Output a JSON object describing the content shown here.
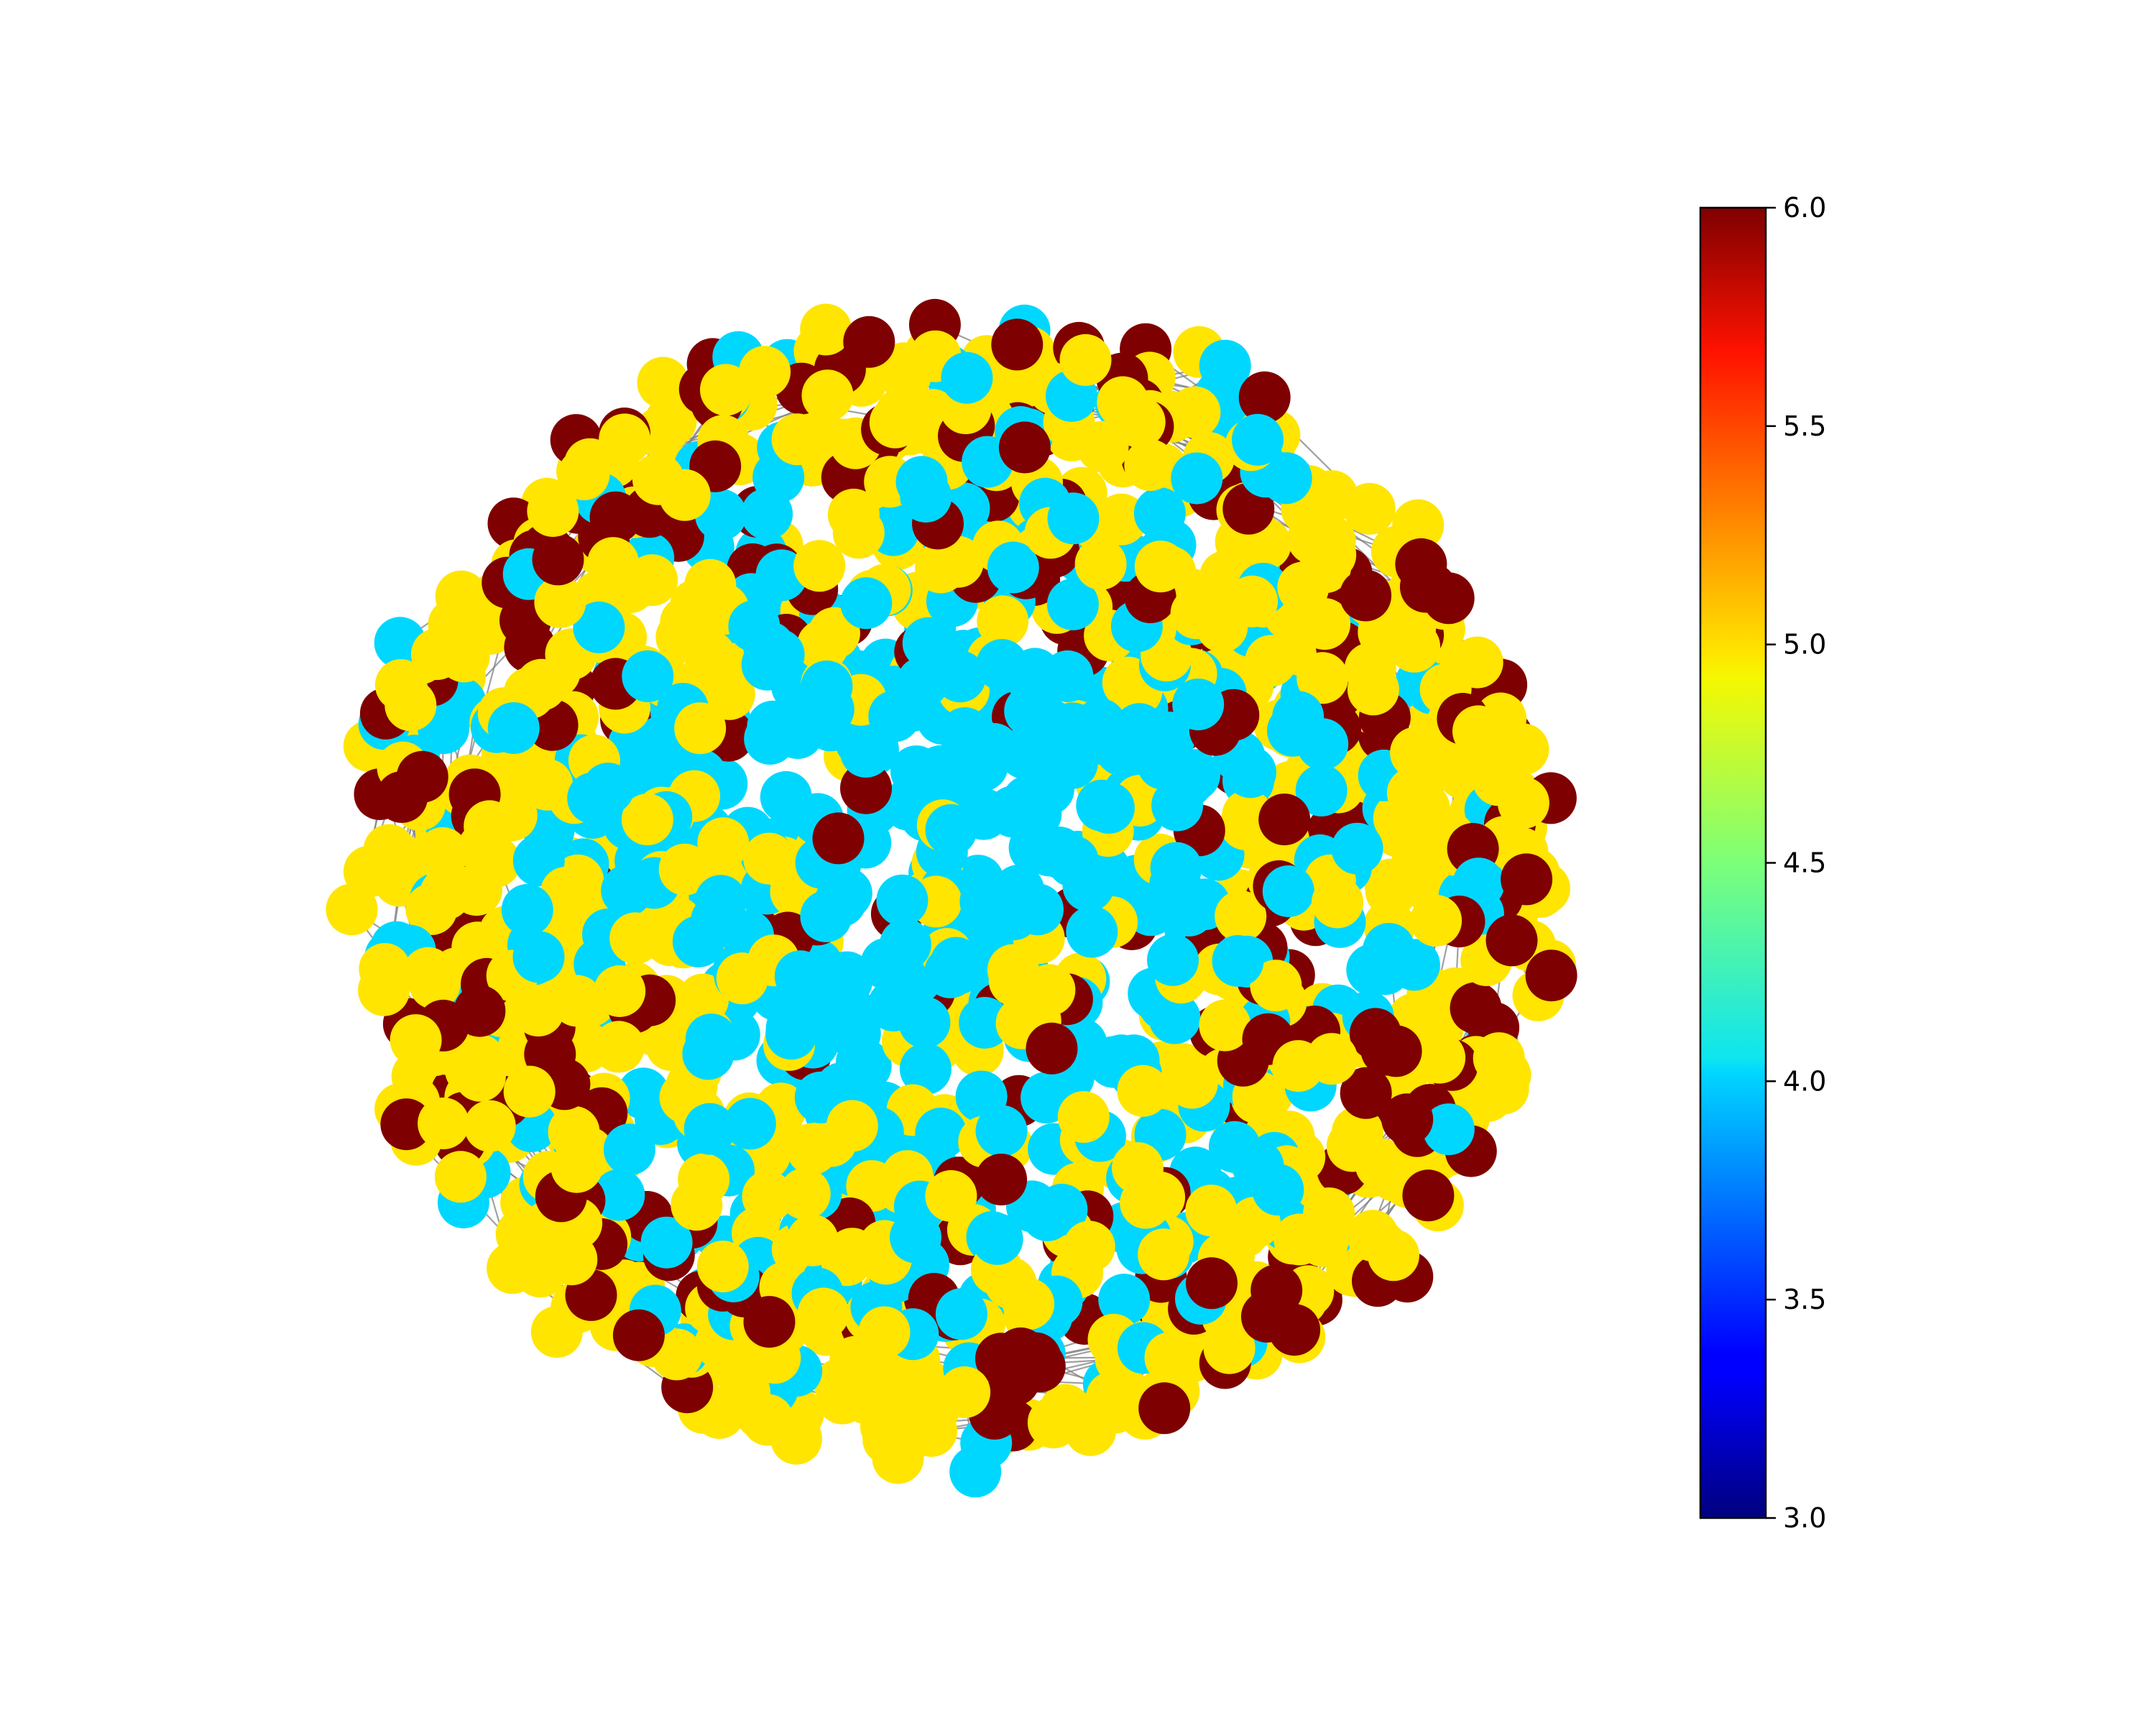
{
  "figure": {
    "type": "network-graph",
    "title": "",
    "edge_color": "#808080"
  },
  "node_color_values": [
    4.0,
    5.0,
    6.0
  ],
  "colorbar": {
    "colormap": "jet",
    "min": 3.0,
    "max": 6.0,
    "tick_labels": [
      "3.0",
      "3.5",
      "4.0",
      "4.5",
      "5.0",
      "5.5",
      "6.0"
    ],
    "colors": {
      "value_3.0": "#00007f",
      "value_4.0": "#00d7ff",
      "value_5.0": "#ffe500",
      "value_6.0": "#7f0000"
    }
  }
}
